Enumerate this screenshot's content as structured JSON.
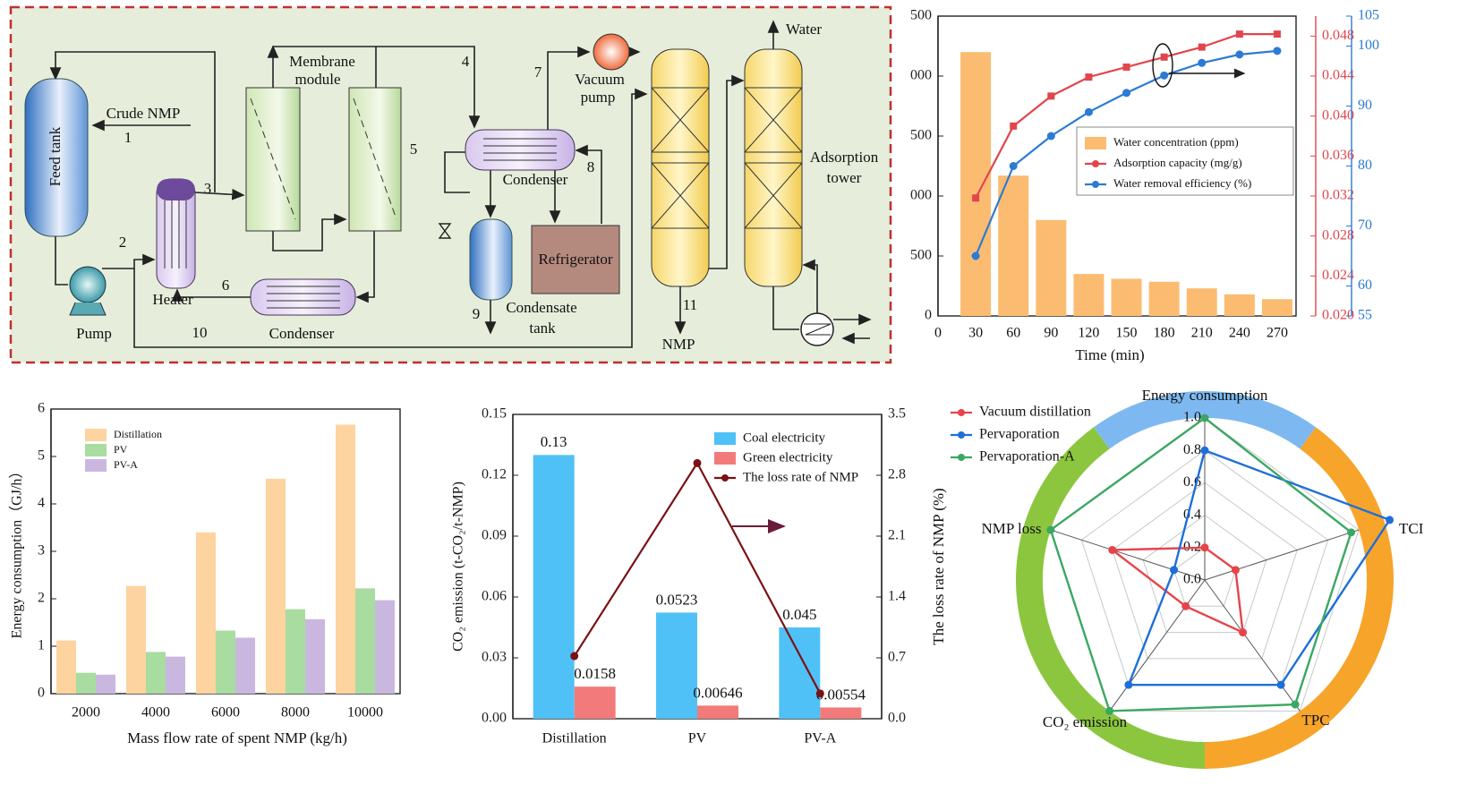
{
  "diagram": {
    "labels": [
      "Crude NMP",
      "1",
      "Feed tank",
      "2",
      "Pump",
      "Heater",
      "3",
      "10",
      "6",
      "Condenser",
      "Membrane",
      "module",
      "4",
      "5",
      "7",
      "Vacuum",
      "pump",
      "Condenser",
      "8",
      "Refrigerator",
      "9",
      "Condensate",
      "tank",
      "11",
      "NMP",
      "Water",
      "Adsorption",
      "tower"
    ]
  },
  "chart_data": [
    {
      "type": "combo",
      "x": [
        30,
        60,
        90,
        120,
        150,
        180,
        210,
        240,
        270
      ],
      "xlabel": "Time (min)",
      "xlim": [
        0,
        285
      ],
      "xticks": [
        0,
        30,
        60,
        90,
        120,
        150,
        180,
        210,
        240,
        270
      ],
      "ylim": [
        0,
        2500
      ],
      "yticks": [
        0,
        500,
        {
          "value": 1000,
          "label": "000"
        },
        {
          "value": 1500,
          "label": "500"
        },
        {
          "value": 2000,
          "label": "000"
        },
        {
          "value": 2500,
          "label": "500"
        }
      ],
      "y2lim": [
        0.02,
        0.05
      ],
      "y2ticks": [
        {
          "value": 0.02,
          "label": "0.020"
        },
        0.024,
        0.028,
        0.032,
        0.036,
        {
          "value": 0.04,
          "label": "0.040"
        },
        0.044,
        0.048
      ],
      "y3lim": [
        55,
        105
      ],
      "y3ticks": [
        55,
        60,
        70,
        80,
        90,
        100,
        105
      ],
      "series": [
        {
          "name": "Water concentration (ppm)",
          "type": "bar",
          "color": "#fbbc72",
          "values": [
            2200,
            1170,
            800,
            350,
            310,
            285,
            230,
            180,
            140
          ]
        },
        {
          "name": "Adsorption capacity (mg/g)",
          "type": "line",
          "axis": "y2",
          "color": "#e2454b",
          "values": [
            0.0318,
            0.039,
            0.042,
            0.0439,
            0.0449,
            0.0459,
            0.0469,
            0.0482,
            0.0482
          ]
        },
        {
          "name": "Water removal efficiency (%)",
          "type": "line",
          "axis": "y3",
          "color": "#2b7bd4",
          "values": [
            65,
            80,
            85,
            89,
            92.2,
            95.1,
            97.2,
            98.6,
            99.2
          ]
        }
      ]
    },
    {
      "type": "bar",
      "categories": [
        "2000",
        "4000",
        "6000",
        "8000",
        "10000"
      ],
      "xlabel": "Mass flow rate of spent NMP (kg/h)",
      "ylabel": "Energy consumption（GJ/h）",
      "ylim": [
        0,
        6
      ],
      "yticks": [
        0,
        1,
        2,
        3,
        4,
        5,
        6
      ],
      "series": [
        {
          "name": "Distillation",
          "color": "#fdd3a0",
          "values": [
            1.12,
            2.27,
            3.4,
            4.53,
            5.67
          ]
        },
        {
          "name": "PV",
          "color": "#a8dca0",
          "values": [
            0.44,
            0.88,
            1.33,
            1.78,
            2.22
          ]
        },
        {
          "name": "PV-A",
          "color": "#cab7e0",
          "values": [
            0.4,
            0.78,
            1.18,
            1.57,
            1.97
          ]
        }
      ]
    },
    {
      "type": "combo",
      "categories": [
        "Distillation",
        "PV",
        "PV-A"
      ],
      "ylabel": "CO₂ emission (t-CO₂/t-NMP)",
      "y2label": "The loss rate of  NMP (%)",
      "ylim": [
        0,
        0.15
      ],
      "yticks": [
        {
          "value": 0,
          "label": "0.00"
        },
        0.03,
        0.06,
        0.09,
        0.12,
        0.15
      ],
      "y2lim": [
        0,
        3.5
      ],
      "y2ticks": [
        {
          "value": 0,
          "label": "0.0"
        },
        0.7,
        1.4,
        2.1,
        2.8,
        3.5
      ],
      "series": [
        {
          "name": "Coal electricity",
          "type": "bar",
          "color": "#4fc1f6",
          "values": [
            0.13,
            0.0523,
            0.045
          ]
        },
        {
          "name": "Green electricity",
          "type": "bar",
          "color": "#f27a7a",
          "values": [
            0.0158,
            0.00646,
            0.00554
          ]
        },
        {
          "name": "The loss rate of  NMP",
          "type": "line",
          "axis": "y2",
          "color": "#7b1113",
          "values": [
            0.72,
            2.94,
            0.29
          ]
        }
      ]
    },
    {
      "type": "radar",
      "axes": [
        "Energy consumption",
        "TCI",
        "TPC",
        "CO₂ emission",
        "NMP loss"
      ],
      "rlim": [
        0,
        1
      ],
      "rticks": [
        {
          "value": 0,
          "label": "0.0"
        },
        0.2,
        0.4,
        0.6,
        0.8,
        {
          "value": 1,
          "label": "1.0"
        }
      ],
      "series": [
        {
          "name": "Vacuum distillation",
          "color": "#e8434a",
          "values": [
            0.2,
            0.2,
            0.4,
            0.2,
            0.6
          ]
        },
        {
          "name": "Pervaporation",
          "color": "#1e6fd9",
          "values": [
            0.8,
            1.2,
            0.8,
            0.8,
            0.2
          ]
        },
        {
          "name": "Pervaporation-A",
          "color": "#3aa862",
          "values": [
            1,
            0.95,
            0.95,
            1,
            1
          ]
        }
      ]
    }
  ]
}
